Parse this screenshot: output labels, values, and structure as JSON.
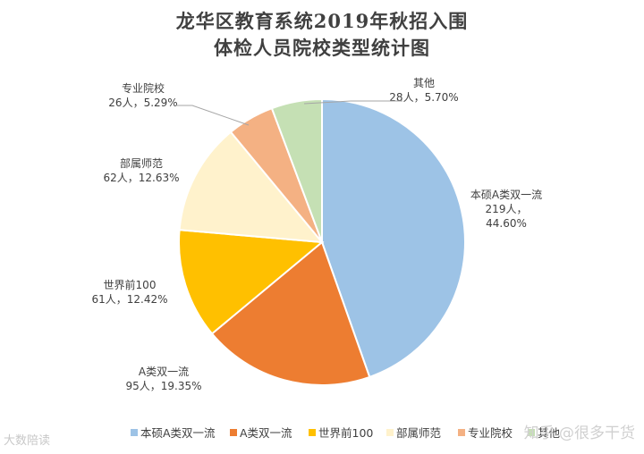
{
  "chart_data": {
    "type": "pie",
    "title": [
      "龙华区教育系统2019年秋招入围",
      "体检人员院校类型统计图"
    ],
    "categories": [
      "本硕A类双一流",
      "A类双一流",
      "世界前100",
      "部属师范",
      "专业院校",
      "其他"
    ],
    "values": [
      219,
      95,
      61,
      62,
      26,
      28
    ],
    "labels": [
      [
        "本硕A类双一流",
        "219人，",
        "44.60%"
      ],
      [
        "A类双一流",
        "95人，19.35%"
      ],
      [
        "世界前100",
        "61人，12.42%"
      ],
      [
        "部属师范",
        "62人，12.63%"
      ],
      [
        "专业院校",
        "26人，5.29%"
      ],
      [
        "其他",
        "28人，5.70%"
      ]
    ],
    "colors": [
      "#9dc3e6",
      "#ed7d31",
      "#ffc000",
      "#fff2cc",
      "#f4b183",
      "#c5e0b4"
    ],
    "legend_position": "bottom"
  },
  "watermarks": {
    "left": "大数陪读",
    "right": "知乎 @很多干货"
  }
}
